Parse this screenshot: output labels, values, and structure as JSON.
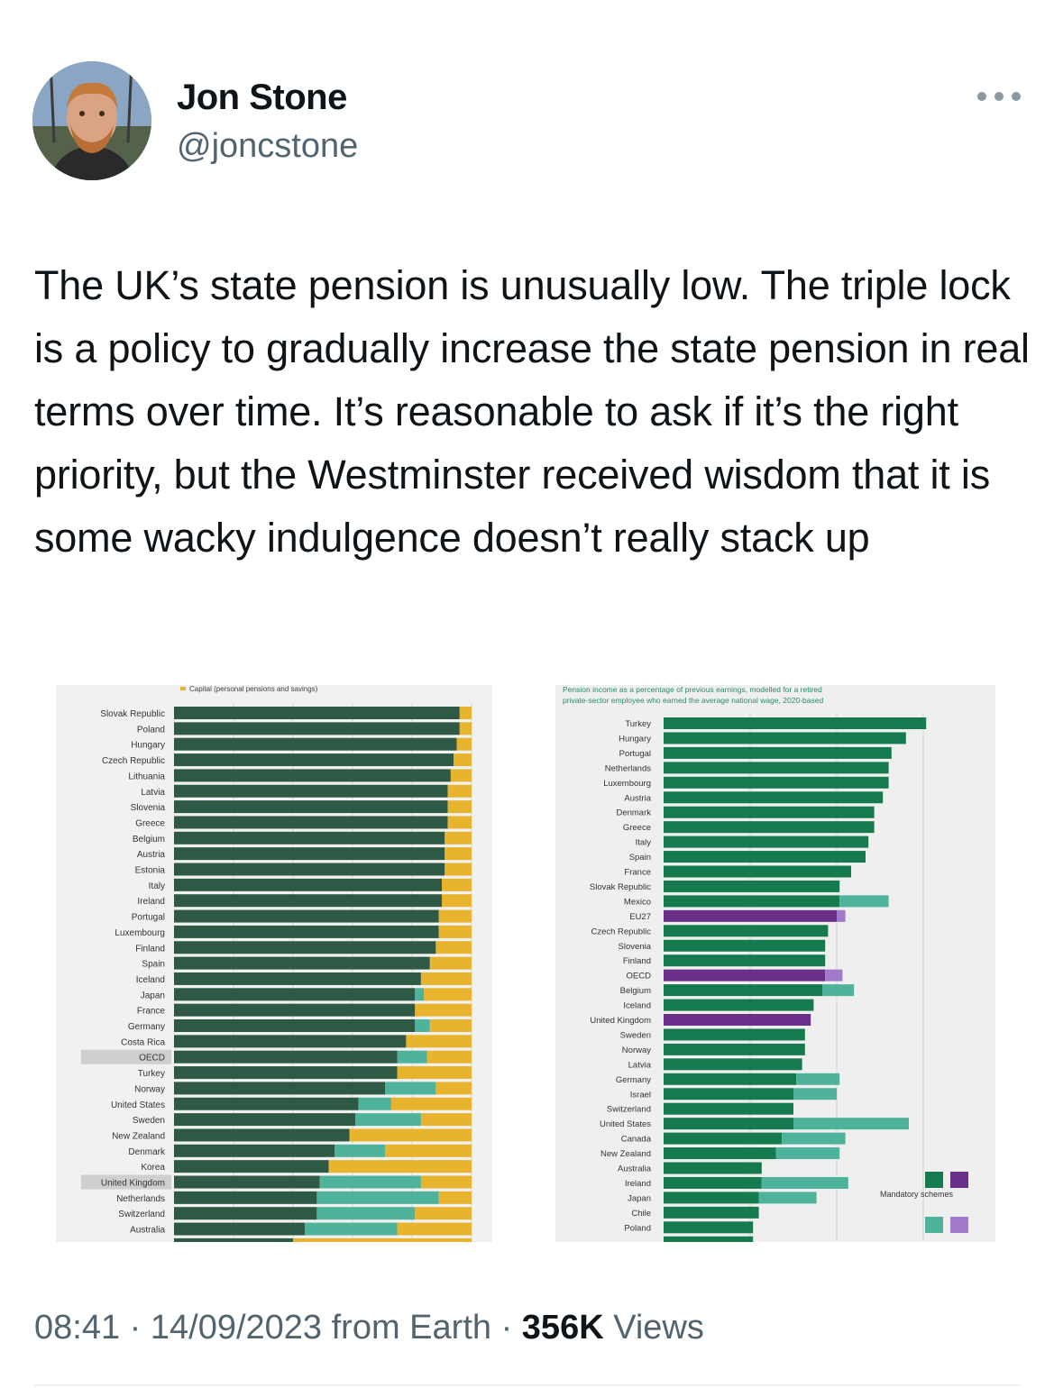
{
  "tweet": {
    "author_name": "Jon Stone",
    "author_handle": "@joncstone",
    "more_icon": "ellipsis-icon",
    "text": "The UK’s state pension is unusually low. The triple lock is a policy to gradually increase the state pension in real terms over time. It’s reasonable to ask if it’s the right priority, but the Westminster received wisdom that it is some wacky indulgence doesn’t really stack up",
    "time": "08:41",
    "date": "14/09/2023",
    "source": "from Earth",
    "views_count": "356K",
    "views_label": "Views",
    "separator": "·"
  },
  "colors": {
    "dark_green": "#2e5a45",
    "yellow": "#e8b42e",
    "teal": "#4fb39b",
    "green": "#167a4f",
    "purple": "#6a3089",
    "light_purple": "#a27acc"
  },
  "chart_data": [
    {
      "type": "bar",
      "orientation": "horizontal",
      "stacked": true,
      "legend": "Capital (personal pensions and savings)",
      "highlighted": [
        "OECD",
        "United Kingdom"
      ],
      "categories": [
        "Slovak Republic",
        "Poland",
        "Hungary",
        "Czech Republic",
        "Lithuania",
        "Latvia",
        "Slovenia",
        "Greece",
        "Belgium",
        "Austria",
        "Estonia",
        "Italy",
        "Ireland",
        "Portugal",
        "Luxembourg",
        "Finland",
        "Spain",
        "Iceland",
        "Japan",
        "France",
        "Germany",
        "Costa Rica",
        "OECD",
        "Turkey",
        "Norway",
        "United States",
        "Sweden",
        "New Zealand",
        "Denmark",
        "Korea",
        "United Kingdom",
        "Netherlands",
        "Switzerland",
        "Australia"
      ],
      "series": [
        {
          "values": [
            96,
            96,
            95,
            94,
            93,
            92,
            92,
            92,
            91,
            91,
            91,
            90,
            90,
            89,
            89,
            88,
            86,
            83,
            81,
            81,
            81,
            78,
            75,
            75,
            71,
            62,
            61,
            59,
            54,
            52,
            49,
            48,
            48,
            44
          ],
          "color_key": "dark_green"
        },
        {
          "values": [
            0,
            0,
            0,
            0,
            0,
            0,
            0,
            0,
            0,
            0,
            0,
            0,
            0,
            0,
            0,
            0,
            0,
            0,
            3,
            0,
            5,
            0,
            10,
            0,
            17,
            11,
            22,
            0,
            17,
            0,
            34,
            41,
            33,
            31
          ],
          "color_key": "teal"
        },
        {
          "values": [
            4,
            4,
            5,
            6,
            7,
            8,
            8,
            8,
            9,
            9,
            9,
            10,
            10,
            11,
            11,
            12,
            14,
            17,
            16,
            19,
            14,
            22,
            15,
            25,
            12,
            27,
            17,
            41,
            29,
            48,
            17,
            11,
            19,
            25
          ],
          "color_key": "yellow"
        }
      ],
      "xlim": [
        0,
        100
      ]
    },
    {
      "type": "bar",
      "orientation": "horizontal",
      "stacked": true,
      "subtitle": "Pension income as a percentage of previous earnings, modelled for a retired private-sector employee who earned the average national wage, 2020-based",
      "legend": "Mandatory schemes",
      "categories": [
        "Turkey",
        "Hungary",
        "Portugal",
        "Netherlands",
        "Luxembourg",
        "Austria",
        "Denmark",
        "Greece",
        "Italy",
        "Spain",
        "France",
        "Slovak Republic",
        "Mexico",
        "EU27",
        "Czech Republic",
        "Slovenia",
        "Finland",
        "OECD",
        "Belgium",
        "Iceland",
        "United Kingdom",
        "Sweden",
        "Norway",
        "Latvia",
        "Germany",
        "Israel",
        "Switzerland",
        "United States",
        "Canada",
        "New Zealand",
        "Australia",
        "Ireland",
        "Japan",
        "Chile",
        "Poland"
      ],
      "aggregates": [
        "EU27",
        "OECD",
        "United Kingdom"
      ],
      "series": [
        {
          "values": [
            91,
            84,
            79,
            78,
            78,
            76,
            73,
            73,
            71,
            70,
            65,
            61,
            61,
            60,
            57,
            56,
            56,
            56,
            55,
            52,
            51,
            49,
            49,
            48,
            46,
            45,
            45,
            45,
            41,
            39,
            34,
            34,
            33,
            33,
            31
          ],
          "color_key": "green"
        },
        {
          "values": [
            0,
            0,
            0,
            0,
            0,
            0,
            0,
            0,
            0,
            0,
            0,
            0,
            17,
            3,
            0,
            0,
            0,
            6,
            11,
            0,
            0,
            0,
            0,
            0,
            15,
            15,
            0,
            40,
            22,
            22,
            0,
            30,
            20,
            0,
            0
          ],
          "color_key": "teal"
        }
      ],
      "xlim": [
        0,
        100
      ]
    }
  ]
}
